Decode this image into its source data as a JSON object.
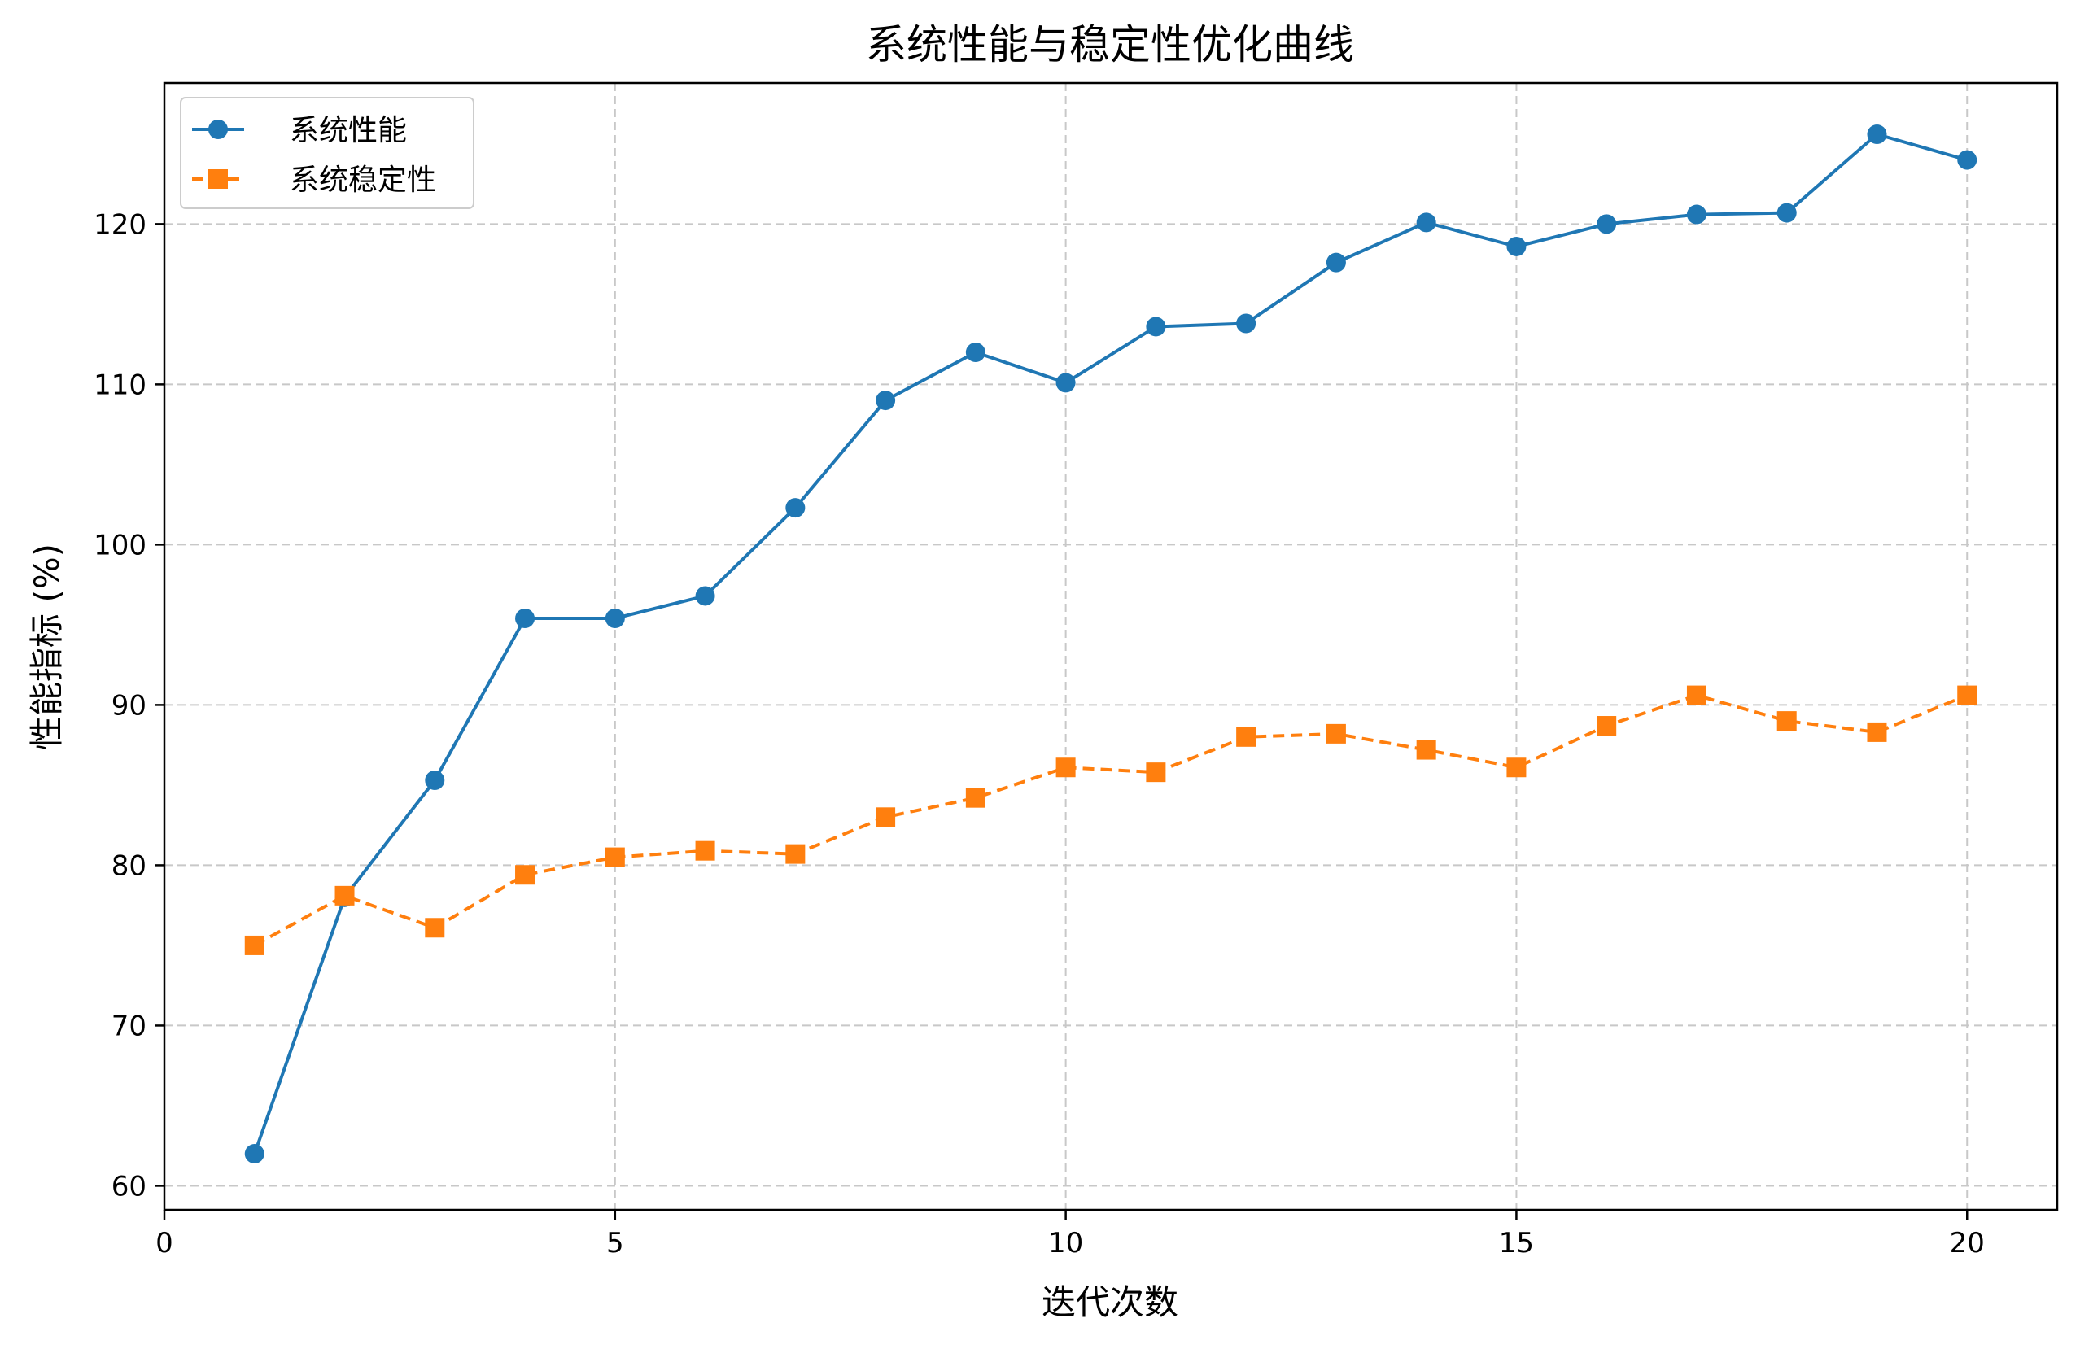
{
  "chart_data": {
    "type": "line",
    "title": "系统性能与稳定性优化曲线",
    "xlabel": "迭代次数",
    "ylabel": "性能指标 (%)",
    "xlim": [
      0,
      21
    ],
    "ylim": [
      58.5,
      128.8
    ],
    "xticks": [
      0,
      5,
      10,
      15,
      20
    ],
    "yticks": [
      60,
      70,
      80,
      90,
      100,
      110,
      120
    ],
    "grid": true,
    "legend_position": "top-left",
    "x": [
      1,
      2,
      3,
      4,
      5,
      6,
      7,
      8,
      9,
      10,
      11,
      12,
      13,
      14,
      15,
      16,
      17,
      18,
      19,
      20
    ],
    "series": [
      {
        "name": "系统性能",
        "color": "#1f77b4",
        "marker": "circle",
        "linestyle": "solid",
        "values": [
          62.0,
          78.0,
          85.3,
          95.4,
          95.4,
          96.8,
          102.3,
          109.0,
          112.0,
          110.1,
          113.6,
          113.8,
          117.6,
          120.1,
          118.6,
          120.0,
          120.6,
          120.7,
          125.6,
          124.0
        ]
      },
      {
        "name": "系统稳定性",
        "color": "#ff7f0e",
        "marker": "square",
        "linestyle": "dashed",
        "values": [
          75.0,
          78.1,
          76.1,
          79.4,
          80.5,
          80.9,
          80.7,
          83.0,
          84.2,
          86.1,
          85.8,
          88.0,
          88.2,
          87.2,
          86.1,
          88.7,
          90.6,
          89.0,
          88.3,
          90.6
        ]
      }
    ]
  }
}
